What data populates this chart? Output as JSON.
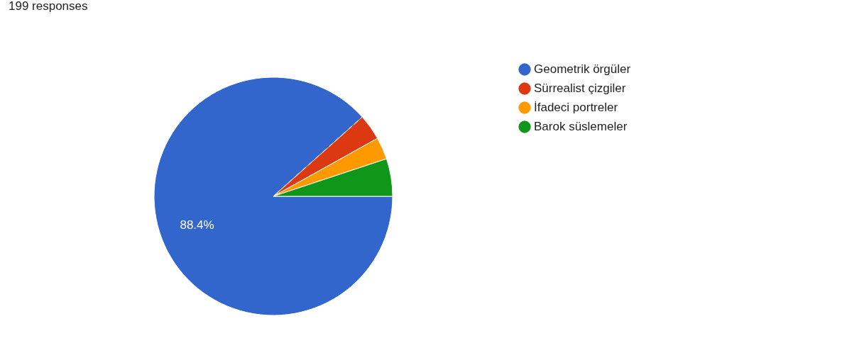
{
  "chart_data": {
    "type": "pie",
    "title": "199 responses",
    "categories": [
      "Geometrik örgüler",
      "Sürrealist çizgiler",
      "İfadeci portreler",
      "Barok süslemeler"
    ],
    "values": [
      88.4,
      3.5,
      3.0,
      5.1
    ],
    "colors": [
      "#3366cc",
      "#dc3912",
      "#ff9900",
      "#109618"
    ],
    "value_labels": [
      "88.4%",
      null,
      null,
      null
    ],
    "legend": "right"
  }
}
